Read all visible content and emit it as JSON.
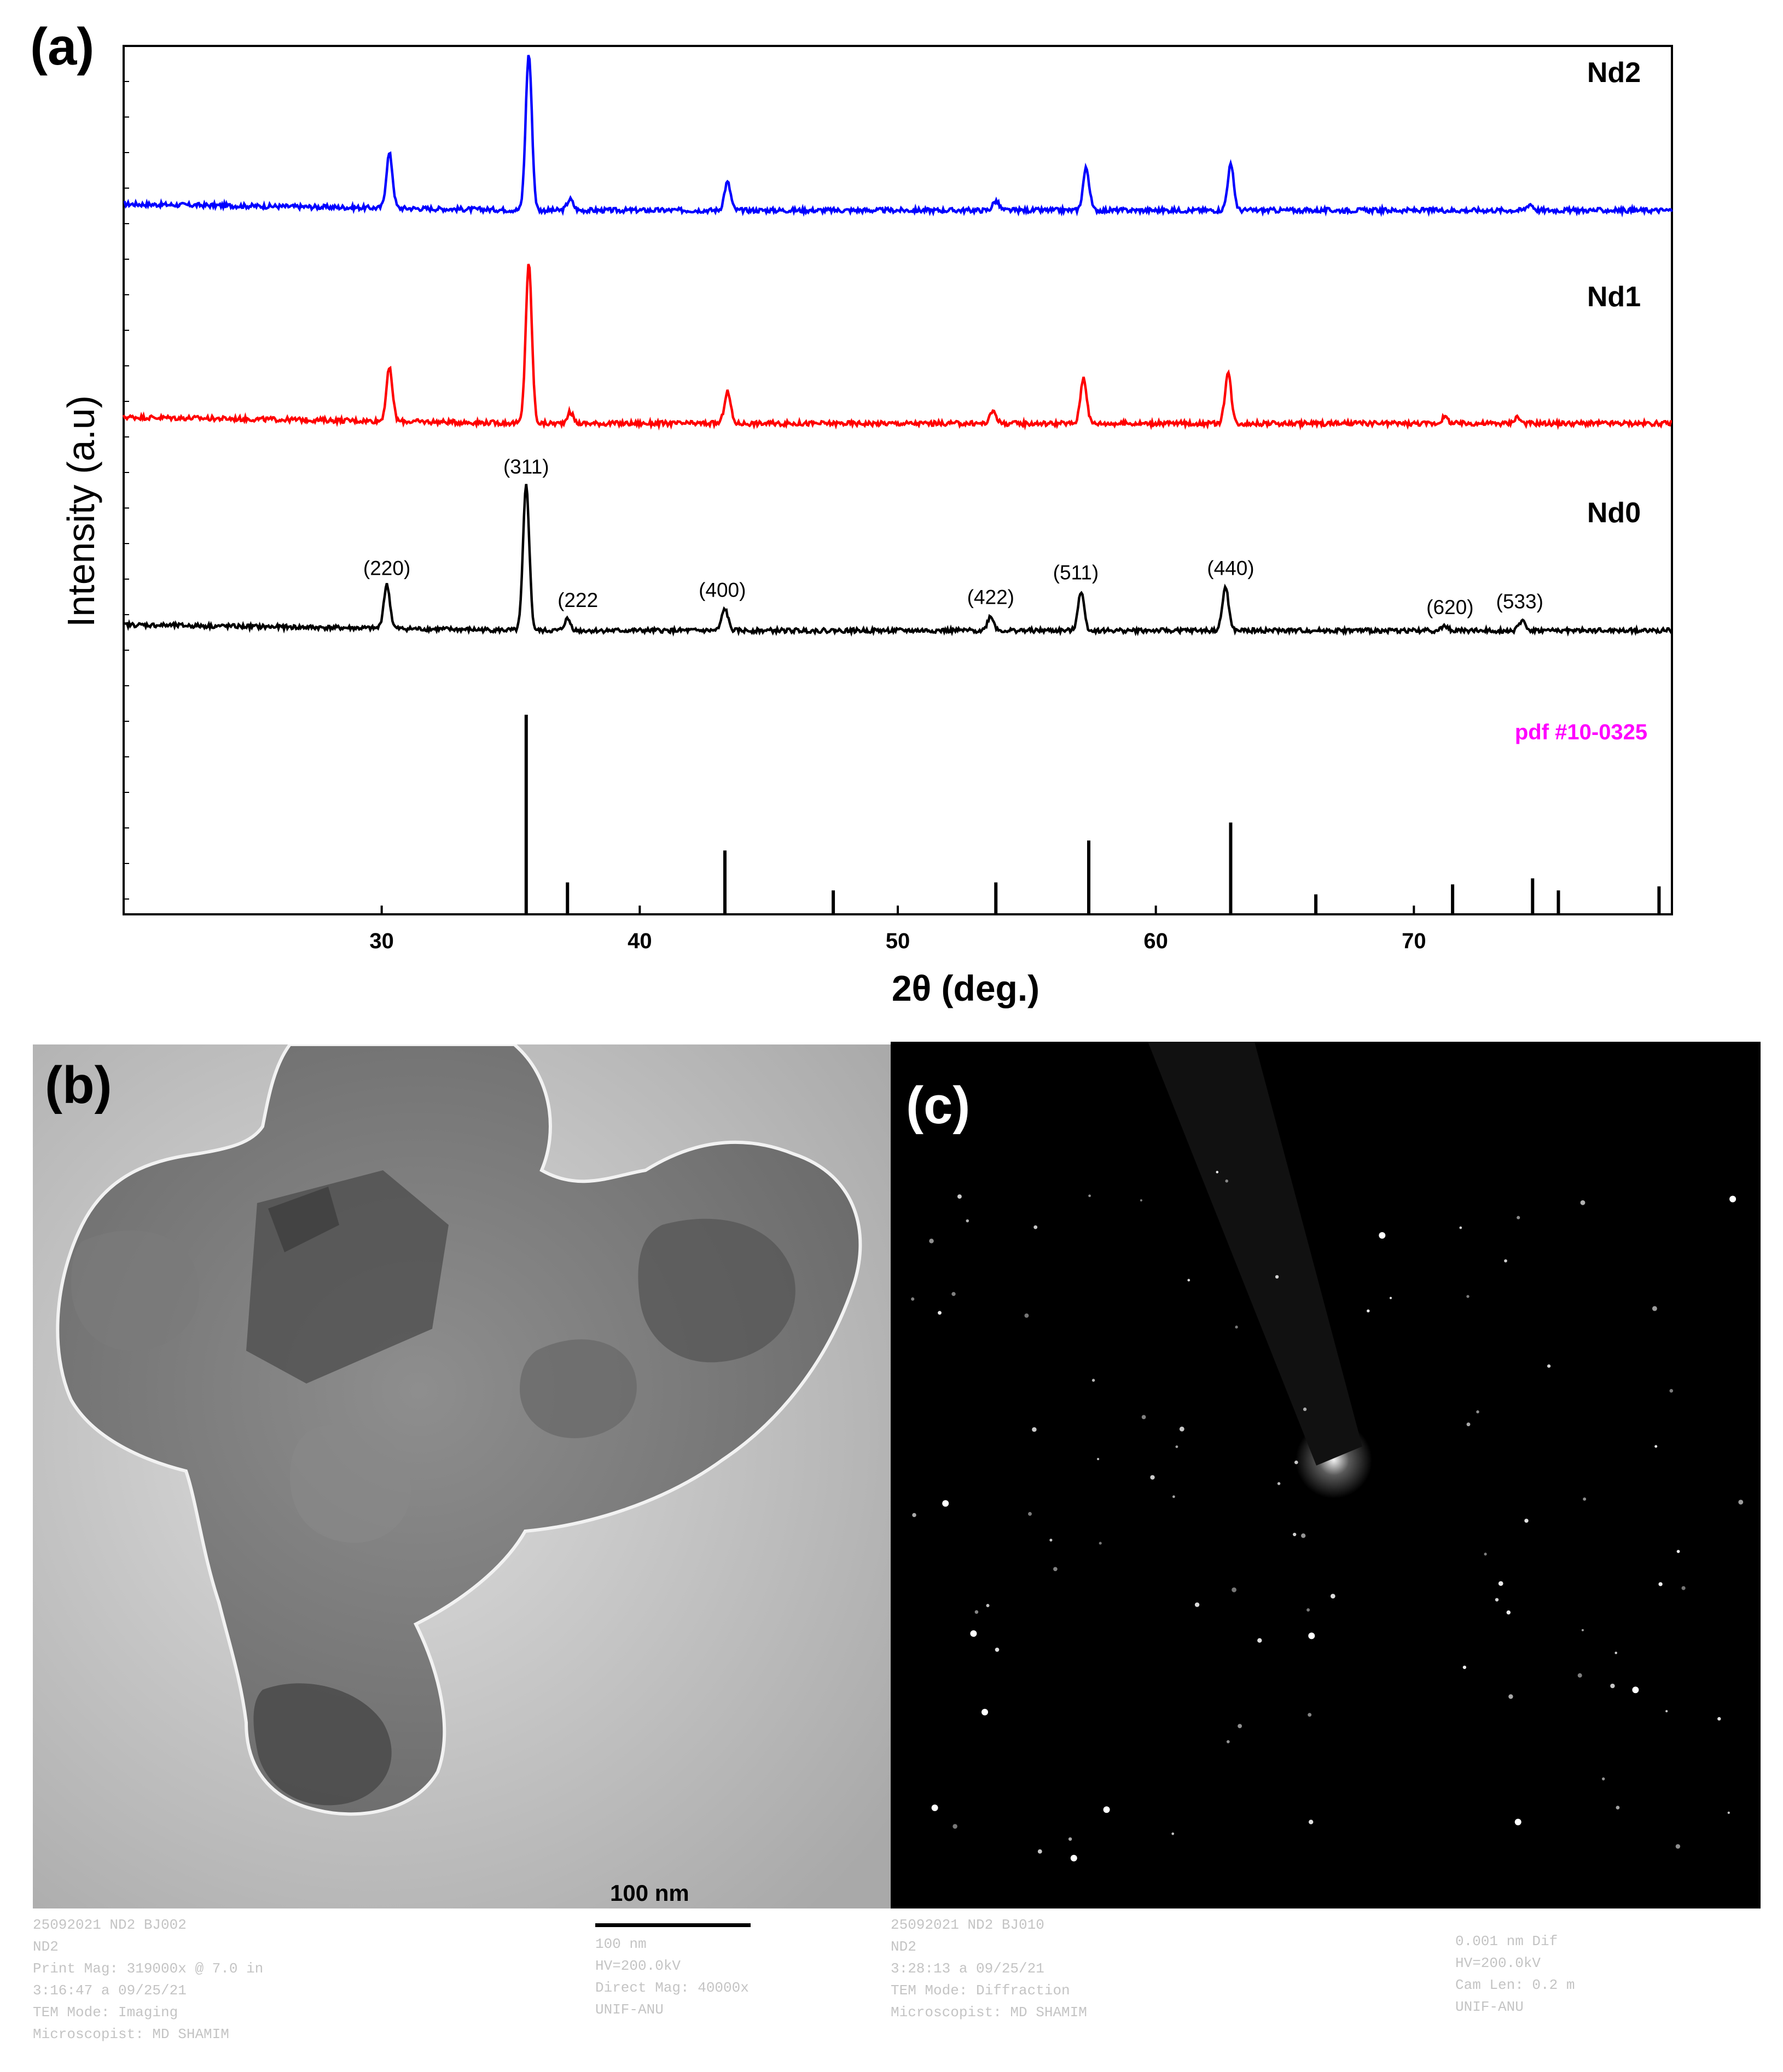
{
  "chart_data": {
    "type": "line",
    "panel_label": "(a)",
    "xlabel": "2θ (deg.)",
    "ylabel": "Intensity (a.u)",
    "xlim": [
      20,
      80
    ],
    "xticks": [
      30,
      40,
      50,
      60,
      70
    ],
    "grid": false,
    "series": [
      {
        "name": "Nd2",
        "color": "#0000ff",
        "baseline": 0.06,
        "peaks": [
          [
            30.3,
            0.35
          ],
          [
            35.7,
            1.0
          ],
          [
            37.3,
            0.07
          ],
          [
            43.4,
            0.18
          ],
          [
            53.8,
            0.06
          ],
          [
            57.3,
            0.27
          ],
          [
            62.9,
            0.29
          ],
          [
            74.5,
            0.04
          ]
        ]
      },
      {
        "name": "Nd1",
        "color": "#ff0000",
        "baseline": 0.06,
        "peaks": [
          [
            30.3,
            0.33
          ],
          [
            35.7,
            1.0
          ],
          [
            37.3,
            0.07
          ],
          [
            43.4,
            0.2
          ],
          [
            53.7,
            0.08
          ],
          [
            57.2,
            0.29
          ],
          [
            62.8,
            0.32
          ],
          [
            71.2,
            0.04
          ],
          [
            74.0,
            0.04
          ]
        ]
      },
      {
        "name": "Nd0",
        "color": "#000000",
        "baseline": 0.05,
        "peaks": [
          [
            30.2,
            0.3
          ],
          [
            35.6,
            1.0
          ],
          [
            37.2,
            0.08
          ],
          [
            43.3,
            0.15
          ],
          [
            53.6,
            0.1
          ],
          [
            57.1,
            0.27
          ],
          [
            62.7,
            0.3
          ],
          [
            71.2,
            0.03
          ],
          [
            74.2,
            0.07
          ]
        ],
        "hkl_labels": [
          {
            "label": "(220)",
            "x": 30.2
          },
          {
            "label": "(311)",
            "x": 35.6
          },
          {
            "label": "(222",
            "x": 37.6
          },
          {
            "label": "(400)",
            "x": 43.2
          },
          {
            "label": "(422)",
            "x": 53.6
          },
          {
            "label": "(511)",
            "x": 56.9
          },
          {
            "label": "(440)",
            "x": 62.9
          },
          {
            "label": "(620)",
            "x": 71.4
          },
          {
            "label": "(533)",
            "x": 74.1
          }
        ]
      }
    ],
    "reference": {
      "label": "pdf #10-0325",
      "color": "#ff00ff",
      "lines": [
        [
          35.6,
          1.0
        ],
        [
          37.2,
          0.16
        ],
        [
          43.3,
          0.32
        ],
        [
          47.5,
          0.12
        ],
        [
          53.8,
          0.16
        ],
        [
          57.4,
          0.37
        ],
        [
          62.9,
          0.46
        ],
        [
          66.2,
          0.1
        ],
        [
          71.5,
          0.15
        ],
        [
          74.6,
          0.18
        ],
        [
          75.6,
          0.12
        ],
        [
          79.5,
          0.14
        ]
      ]
    }
  },
  "tem_panel": {
    "label": "(b)",
    "scale_bar": "100 nm",
    "meta_left": [
      "25092021 ND2 BJ002",
      "ND2",
      "Print Mag: 319000x @ 7.0 in",
      "3:16:47 a 09/25/21",
      "TEM Mode: Imaging",
      "Microscopist: MD SHAMIM"
    ],
    "meta_right": [
      "100 nm",
      "HV=200.0kV",
      "Direct Mag: 40000x",
      "UNIF-ANU"
    ]
  },
  "saed_panel": {
    "label": "(c)",
    "meta_left": [
      "25092021 ND2 BJ010",
      "ND2",
      "3:28:13 a 09/25/21",
      "TEM Mode: Diffraction",
      "Microscopist: MD SHAMIM"
    ],
    "meta_right": [
      "0.001 nm Dif",
      "HV=200.0kV",
      "Cam Len: 0.2 m",
      "UNIF-ANU"
    ]
  }
}
